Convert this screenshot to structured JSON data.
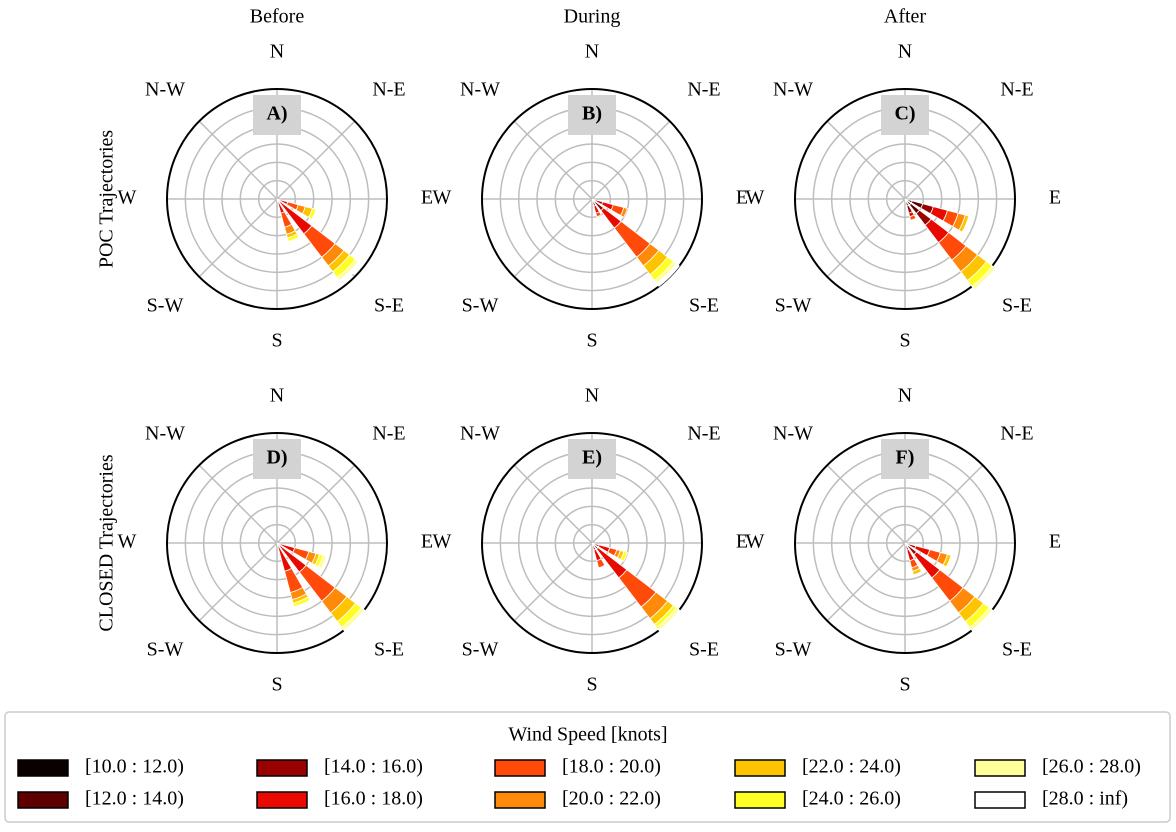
{
  "chart_data": [
    {
      "type": "windrose",
      "title": "Before",
      "ylabel": "POC Trajectories",
      "label": "A)",
      "direction_labels": [
        "N",
        "N-E",
        "E",
        "S-E",
        "S",
        "S-W",
        "W",
        "N-W"
      ],
      "directions": [
        112.5,
        135,
        157.5
      ],
      "rlim": [
        0,
        30
      ],
      "rticks": [
        5,
        10,
        15,
        20,
        25
      ],
      "grid": true,
      "values": [
        [
          0,
          0,
          0
        ],
        [
          0,
          0,
          0
        ],
        [
          0,
          0,
          0
        ],
        [
          3,
          12,
          4
        ],
        [
          3,
          8,
          4
        ],
        [
          2,
          3,
          2
        ],
        [
          2,
          2,
          1
        ],
        [
          1,
          2,
          1
        ],
        [
          0,
          1,
          0
        ],
        [
          0,
          1,
          0
        ]
      ]
    },
    {
      "type": "windrose",
      "title": "During",
      "label": "B)",
      "direction_labels": [
        "N",
        "N-E",
        "E",
        "S-E",
        "S",
        "S-W",
        "W",
        "N-W"
      ],
      "directions": [
        112.5,
        135,
        157.5
      ],
      "rlim": [
        0,
        30
      ],
      "rticks": [
        5,
        10,
        15,
        20,
        25
      ],
      "grid": true,
      "values": [
        [
          0,
          0,
          0
        ],
        [
          0,
          0,
          0
        ],
        [
          3,
          4,
          2
        ],
        [
          3,
          6,
          2
        ],
        [
          3,
          10,
          1
        ],
        [
          1,
          3,
          0
        ],
        [
          0,
          3,
          0
        ],
        [
          0,
          2,
          0
        ],
        [
          0,
          1,
          0
        ],
        [
          0,
          1,
          0
        ]
      ]
    },
    {
      "type": "windrose",
      "title": "After",
      "label": "C)",
      "direction_labels": [
        "N",
        "N-E",
        "E",
        "S-E",
        "S",
        "S-W",
        "W",
        "N-W"
      ],
      "directions": [
        112.5,
        135,
        157.5
      ],
      "rlim": [
        0,
        30
      ],
      "rticks": [
        5,
        10,
        15,
        20,
        25
      ],
      "grid": true,
      "values": [
        [
          2,
          2,
          1
        ],
        [
          3,
          3,
          1
        ],
        [
          3,
          4,
          2
        ],
        [
          4,
          6,
          1
        ],
        [
          3,
          6,
          1
        ],
        [
          2,
          4,
          0
        ],
        [
          1,
          3,
          0
        ],
        [
          0,
          2,
          0
        ],
        [
          0,
          1,
          0
        ],
        [
          0,
          0,
          0
        ]
      ]
    },
    {
      "type": "windrose",
      "ylabel": "CLOSED Trajectories",
      "label": "D)",
      "direction_labels": [
        "N",
        "N-E",
        "E",
        "S-E",
        "S",
        "S-W",
        "W",
        "N-W"
      ],
      "directions": [
        112.5,
        135,
        157.5
      ],
      "rlim": [
        0,
        30
      ],
      "rticks": [
        5,
        10,
        15,
        20,
        25
      ],
      "grid": true,
      "values": [
        [
          0,
          0,
          0
        ],
        [
          0,
          0,
          0
        ],
        [
          0,
          0,
          0
        ],
        [
          5,
          10,
          8
        ],
        [
          4,
          10,
          6
        ],
        [
          2,
          4,
          2
        ],
        [
          1,
          3,
          1
        ],
        [
          1,
          2,
          1
        ],
        [
          1,
          1,
          0
        ],
        [
          0,
          1,
          0
        ]
      ]
    },
    {
      "type": "windrose",
      "label": "E)",
      "direction_labels": [
        "N",
        "N-E",
        "E",
        "S-E",
        "S",
        "S-W",
        "W",
        "N-W"
      ],
      "directions": [
        112.5,
        135,
        157.5
      ],
      "rlim": [
        0,
        30
      ],
      "rticks": [
        5,
        10,
        15,
        20,
        25
      ],
      "grid": true,
      "values": [
        [
          0,
          0,
          0
        ],
        [
          0,
          0,
          0
        ],
        [
          2,
          2,
          2
        ],
        [
          3,
          10,
          3
        ],
        [
          2,
          10,
          2
        ],
        [
          1,
          4,
          0
        ],
        [
          1,
          2,
          0
        ],
        [
          1,
          1,
          0
        ],
        [
          0,
          1,
          0
        ],
        [
          0,
          1,
          0
        ]
      ]
    },
    {
      "type": "windrose",
      "label": "F)",
      "direction_labels": [
        "N",
        "N-E",
        "E",
        "S-E",
        "S",
        "S-W",
        "W",
        "N-W"
      ],
      "directions": [
        112.5,
        135,
        157.5
      ],
      "rlim": [
        0,
        30
      ],
      "rticks": [
        5,
        10,
        15,
        20,
        25
      ],
      "grid": true,
      "values": [
        [
          0,
          0,
          0
        ],
        [
          1,
          1,
          0
        ],
        [
          2,
          3,
          2
        ],
        [
          4,
          8,
          3
        ],
        [
          3,
          8,
          2
        ],
        [
          2,
          4,
          1
        ],
        [
          1,
          3,
          1
        ],
        [
          0,
          2,
          0
        ],
        [
          0,
          1,
          0
        ],
        [
          0,
          1,
          0
        ]
      ]
    }
  ],
  "legend": {
    "title": "Wind Speed [knots]",
    "names": [
      "[10.0 : 12.0)",
      "[12.0 : 14.0)",
      "[14.0 : 16.0)",
      "[16.0 : 18.0)",
      "[18.0 : 20.0)",
      "[20.0 : 22.0)",
      "[22.0 : 24.0)",
      "[24.0 : 26.0)",
      "[26.0 : 28.0)",
      "[28.0 : inf)"
    ],
    "colors": [
      "#0b0000",
      "#5e0000",
      "#990000",
      "#e80a00",
      "#ff4a0a",
      "#ff8a0a",
      "#ffc400",
      "#ffff24",
      "#ffff99",
      "#ffffff"
    ]
  }
}
